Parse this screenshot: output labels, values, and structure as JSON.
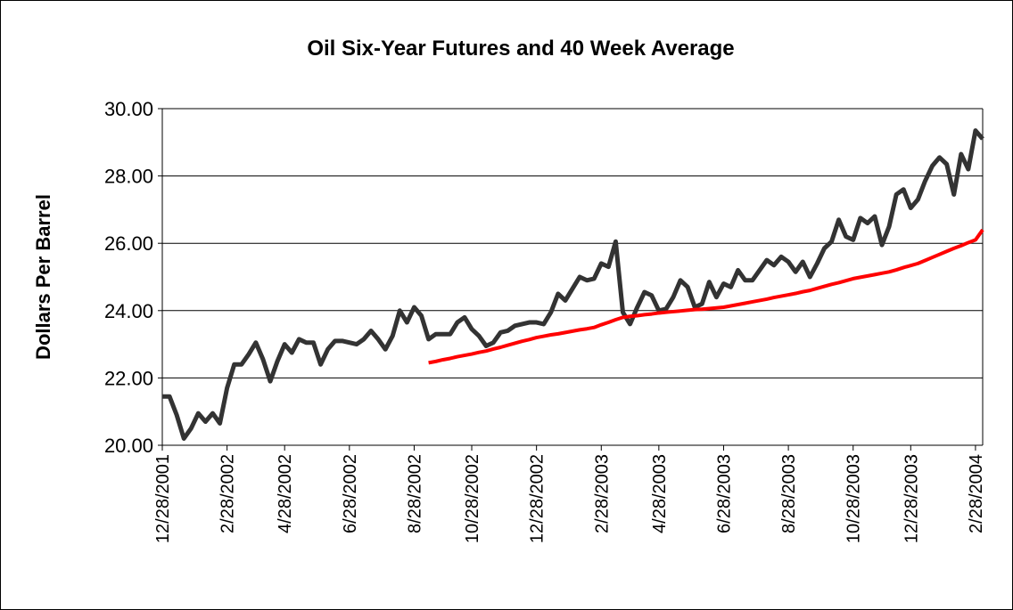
{
  "chart_data": {
    "type": "line",
    "title": "Oil Six-Year Futures and 40 Week Average",
    "y_label": "Dollars Per Barrel",
    "categories": [
      "12/28/2001",
      null,
      null,
      null,
      null,
      null,
      null,
      null,
      null,
      "2/28/2002",
      null,
      null,
      null,
      null,
      null,
      null,
      null,
      "4/28/2002",
      null,
      null,
      null,
      null,
      null,
      null,
      null,
      null,
      "6/28/2002",
      null,
      null,
      null,
      null,
      null,
      null,
      null,
      null,
      "8/28/2002",
      null,
      null,
      null,
      null,
      null,
      null,
      null,
      "10/28/2002",
      null,
      null,
      null,
      null,
      null,
      null,
      null,
      null,
      "12/28/2002",
      null,
      null,
      null,
      null,
      null,
      null,
      null,
      null,
      "2/28/2003",
      null,
      null,
      null,
      null,
      null,
      null,
      null,
      "4/28/2003",
      null,
      null,
      null,
      null,
      null,
      null,
      null,
      null,
      "6/28/2003",
      null,
      null,
      null,
      null,
      null,
      null,
      null,
      null,
      "8/28/2003",
      null,
      null,
      null,
      null,
      null,
      null,
      null,
      null,
      "10/28/2003",
      null,
      null,
      null,
      null,
      null,
      null,
      null,
      "12/28/2003",
      null,
      null,
      null,
      null,
      null,
      null,
      null,
      null,
      "2/28/2004",
      null
    ],
    "series": [
      {
        "color": "#333333",
        "values": [
          21.45,
          21.45,
          20.9,
          20.2,
          20.5,
          20.95,
          20.7,
          20.95,
          20.65,
          21.7,
          22.4,
          22.4,
          22.7,
          23.05,
          22.55,
          21.9,
          22.5,
          23.0,
          22.75,
          23.15,
          23.05,
          23.05,
          22.4,
          22.85,
          23.1,
          23.1,
          23.05,
          23.0,
          23.15,
          23.4,
          23.15,
          22.85,
          23.25,
          24.0,
          23.65,
          24.1,
          23.85,
          23.15,
          23.3,
          23.3,
          23.3,
          23.65,
          23.8,
          23.45,
          23.25,
          22.95,
          23.05,
          23.35,
          23.4,
          23.55,
          23.6,
          23.65,
          23.65,
          23.6,
          23.95,
          24.5,
          24.3,
          24.65,
          25.0,
          24.9,
          24.95,
          25.4,
          25.3,
          26.05,
          23.95,
          23.6,
          24.1,
          24.55,
          24.45,
          24.0,
          24.05,
          24.4,
          24.9,
          24.7,
          24.1,
          24.2,
          24.85,
          24.4,
          24.8,
          24.7,
          25.2,
          24.9,
          24.9,
          25.2,
          25.5,
          25.35,
          25.6,
          25.45,
          25.15,
          25.45,
          25.0,
          25.4,
          25.85,
          26.05,
          26.7,
          26.2,
          26.1,
          26.75,
          26.6,
          26.8,
          25.95,
          26.5,
          27.45,
          27.6,
          27.05,
          27.3,
          27.85,
          28.3,
          28.55,
          28.35,
          27.45,
          28.65,
          28.2,
          29.35,
          29.1
        ]
      },
      {
        "color": "#ff0000",
        "values": [
          null,
          null,
          null,
          null,
          null,
          null,
          null,
          null,
          null,
          null,
          null,
          null,
          null,
          null,
          null,
          null,
          null,
          null,
          null,
          null,
          null,
          null,
          null,
          null,
          null,
          null,
          null,
          null,
          null,
          null,
          null,
          null,
          null,
          null,
          null,
          null,
          null,
          22.45,
          22.49,
          22.54,
          22.58,
          22.63,
          22.67,
          22.71,
          22.76,
          22.8,
          22.86,
          22.91,
          22.97,
          23.03,
          23.09,
          23.14,
          23.2,
          23.24,
          23.28,
          23.31,
          23.35,
          23.39,
          23.43,
          23.46,
          23.5,
          23.58,
          23.65,
          23.73,
          23.8,
          23.83,
          23.85,
          23.88,
          23.9,
          23.93,
          23.95,
          23.97,
          23.99,
          24.01,
          24.03,
          24.04,
          24.06,
          24.08,
          24.1,
          24.14,
          24.18,
          24.22,
          24.26,
          24.3,
          24.34,
          24.39,
          24.43,
          24.47,
          24.51,
          24.56,
          24.6,
          24.66,
          24.72,
          24.78,
          24.83,
          24.89,
          24.95,
          24.99,
          25.03,
          25.07,
          25.11,
          25.15,
          25.21,
          25.28,
          25.34,
          25.4,
          25.49,
          25.58,
          25.67,
          25.76,
          25.85,
          25.93,
          26.02,
          26.1,
          26.4
        ]
      }
    ],
    "ylim": [
      20,
      30
    ],
    "yticks": [
      {
        "value": 20,
        "label": "20.00"
      },
      {
        "value": 22,
        "label": "22.00"
      },
      {
        "value": 24,
        "label": "24.00"
      },
      {
        "value": 26,
        "label": "26.00"
      },
      {
        "value": 28,
        "label": "28.00"
      },
      {
        "value": 30,
        "label": "30.00"
      }
    ],
    "grid": true
  }
}
